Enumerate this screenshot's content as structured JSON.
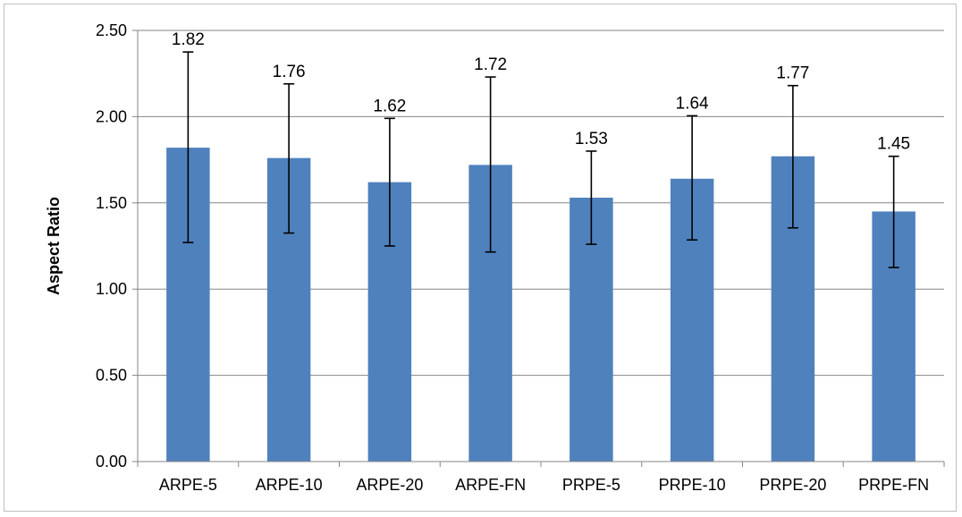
{
  "chart_data": {
    "type": "bar",
    "categories": [
      "ARPE-5",
      "ARPE-10",
      "ARPE-20",
      "ARPE-FN",
      "PRPE-5",
      "PRPE-10",
      "PRPE-20",
      "PRPE-FN"
    ],
    "values": [
      1.82,
      1.76,
      1.62,
      1.72,
      1.53,
      1.64,
      1.77,
      1.45
    ],
    "data_labels": [
      "1.82",
      "1.76",
      "1.62",
      "1.72",
      "1.53",
      "1.64",
      "1.77",
      "1.45"
    ],
    "error_bars": {
      "lower": [
        1.27,
        1.325,
        1.25,
        1.215,
        1.26,
        1.285,
        1.355,
        1.125
      ],
      "upper": [
        2.375,
        2.19,
        1.99,
        2.23,
        1.8,
        2.005,
        2.18,
        1.77
      ]
    },
    "title": "",
    "xlabel": "",
    "ylabel": "Aspect Ratio",
    "ylim": [
      0,
      2.5
    ],
    "yticks": [
      "0.00",
      "0.50",
      "1.00",
      "1.50",
      "2.00",
      "2.50"
    ],
    "ytick_values": [
      0,
      0.5,
      1.0,
      1.5,
      2.0,
      2.5
    ],
    "grid": true,
    "legend": "none",
    "colors": {
      "bar": "#4f81bd",
      "grid": "#868686",
      "axis": "#868686",
      "error_bar": "#000000"
    }
  }
}
